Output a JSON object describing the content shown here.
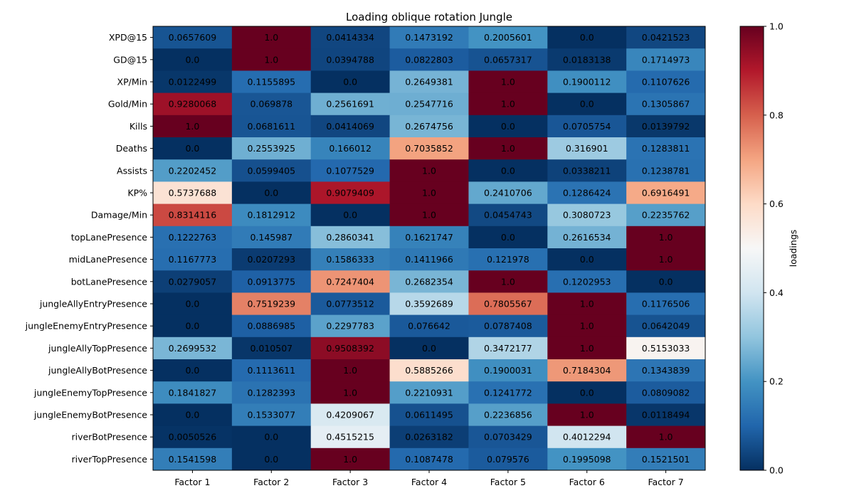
{
  "chart_data": {
    "type": "heatmap",
    "title": "Loading oblique rotation Jungle",
    "colorbar_label": "loadings",
    "colormap": "RdBu_r",
    "value_range": [
      0.0,
      1.0
    ],
    "colorbar_ticks": [
      "0.0",
      "0.2",
      "0.4",
      "0.6",
      "0.8",
      "1.0"
    ],
    "columns": [
      "Factor 1",
      "Factor 2",
      "Factor 3",
      "Factor 4",
      "Factor 5",
      "Factor 6",
      "Factor 7"
    ],
    "rows": [
      "XPD@15",
      "GD@15",
      "XP/Min",
      "Gold/Min",
      "Kills",
      "Deaths",
      "Assists",
      "KP%",
      "Damage/Min",
      "topLanePresence",
      "midLanePresence",
      "botLanePresence",
      "jungleAllyEntryPresence",
      "jungleEnemyEntryPresence",
      "jungleAllyTopPresence",
      "jungleAllyBotPresence",
      "jungleEnemyTopPresence",
      "jungleEnemyBotPresence",
      "riverBotPresence",
      "riverTopPresence"
    ],
    "values": [
      [
        0.0657609,
        1.0,
        0.0414334,
        0.1473192,
        0.2005601,
        0.0,
        0.0421523
      ],
      [
        0.0,
        1.0,
        0.0394788,
        0.0822803,
        0.0657317,
        0.0183138,
        0.1714973
      ],
      [
        0.0122499,
        0.1155895,
        0.0,
        0.2649381,
        1.0,
        0.1900112,
        0.1107626
      ],
      [
        0.9280068,
        0.069878,
        0.2561691,
        0.2547716,
        1.0,
        0.0,
        0.1305867
      ],
      [
        1.0,
        0.0681611,
        0.0414069,
        0.2674756,
        0.0,
        0.0705754,
        0.0139792
      ],
      [
        0.0,
        0.2553925,
        0.166012,
        0.7035852,
        1.0,
        0.316901,
        0.1283811
      ],
      [
        0.2202452,
        0.0599405,
        0.1077529,
        1.0,
        0.0,
        0.0338211,
        0.1238781
      ],
      [
        0.5737688,
        0.0,
        0.9079409,
        1.0,
        0.2410706,
        0.1286424,
        0.6916491
      ],
      [
        0.8314116,
        0.1812912,
        0.0,
        1.0,
        0.0454743,
        0.3080723,
        0.2235762
      ],
      [
        0.1222763,
        0.145987,
        0.2860341,
        0.1621747,
        0.0,
        0.2616534,
        1.0
      ],
      [
        0.1167773,
        0.0207293,
        0.1586333,
        0.1411966,
        0.121978,
        0.0,
        1.0
      ],
      [
        0.0279057,
        0.0913775,
        0.7247404,
        0.2682354,
        1.0,
        0.1202953,
        0.0
      ],
      [
        0.0,
        0.7519239,
        0.0773512,
        0.3592689,
        0.7805567,
        1.0,
        0.1176506
      ],
      [
        0.0,
        0.0886985,
        0.2297783,
        0.076642,
        0.0787408,
        1.0,
        0.0642049
      ],
      [
        0.2699532,
        0.010507,
        0.9508392,
        0.0,
        0.3472177,
        1.0,
        0.5153033
      ],
      [
        0.0,
        0.1113611,
        1.0,
        0.5885266,
        0.1900031,
        0.7184304,
        0.1343839
      ],
      [
        0.1841827,
        0.1282393,
        1.0,
        0.2210931,
        0.1241772,
        0.0,
        0.0809082
      ],
      [
        0.0,
        0.1533077,
        0.4209067,
        0.0611495,
        0.2236856,
        1.0,
        0.0118494
      ],
      [
        0.0050526,
        0.0,
        0.4515215,
        0.0263182,
        0.0703429,
        0.4012294,
        1.0
      ],
      [
        0.1541598,
        0.0,
        1.0,
        0.1087478,
        0.079576,
        0.1995098,
        0.1521501
      ]
    ],
    "cell_labels": [
      [
        "0.0657609",
        "1.0",
        "0.0414334",
        "0.1473192",
        "0.2005601",
        "0.0",
        "0.0421523"
      ],
      [
        "0.0",
        "1.0",
        "0.0394788",
        "0.0822803",
        "0.0657317",
        "0.0183138",
        "0.1714973"
      ],
      [
        "0.0122499",
        "0.1155895",
        "0.0",
        "0.2649381",
        "1.0",
        "0.1900112",
        "0.1107626"
      ],
      [
        "0.9280068",
        "0.069878",
        "0.2561691",
        "0.2547716",
        "1.0",
        "0.0",
        "0.1305867"
      ],
      [
        "1.0",
        "0.0681611",
        "0.0414069",
        "0.2674756",
        "0.0",
        "0.0705754",
        "0.0139792"
      ],
      [
        "0.0",
        "0.2553925",
        "0.166012",
        "0.7035852",
        "1.0",
        "0.316901",
        "0.1283811"
      ],
      [
        "0.2202452",
        "0.0599405",
        "0.1077529",
        "1.0",
        "0.0",
        "0.0338211",
        "0.1238781"
      ],
      [
        "0.5737688",
        "0.0",
        "0.9079409",
        "1.0",
        "0.2410706",
        "0.1286424",
        "0.6916491"
      ],
      [
        "0.8314116",
        "0.1812912",
        "0.0",
        "1.0",
        "0.0454743",
        "0.3080723",
        "0.2235762"
      ],
      [
        "0.1222763",
        "0.145987",
        "0.2860341",
        "0.1621747",
        "0.0",
        "0.2616534",
        "1.0"
      ],
      [
        "0.1167773",
        "0.0207293",
        "0.1586333",
        "0.1411966",
        "0.121978",
        "0.0",
        "1.0"
      ],
      [
        "0.0279057",
        "0.0913775",
        "0.7247404",
        "0.2682354",
        "1.0",
        "0.1202953",
        "0.0"
      ],
      [
        "0.0",
        "0.7519239",
        "0.0773512",
        "0.3592689",
        "0.7805567",
        "1.0",
        "0.1176506"
      ],
      [
        "0.0",
        "0.0886985",
        "0.2297783",
        "0.076642",
        "0.0787408",
        "1.0",
        "0.0642049"
      ],
      [
        "0.2699532",
        "0.010507",
        "0.9508392",
        "0.0",
        "0.3472177",
        "1.0",
        "0.5153033"
      ],
      [
        "0.0",
        "0.1113611",
        "1.0",
        "0.5885266",
        "0.1900031",
        "0.7184304",
        "0.1343839"
      ],
      [
        "0.1841827",
        "0.1282393",
        "1.0",
        "0.2210931",
        "0.1241772",
        "0.0",
        "0.0809082"
      ],
      [
        "0.0",
        "0.1533077",
        "0.4209067",
        "0.0611495",
        "0.2236856",
        "1.0",
        "0.0118494"
      ],
      [
        "0.0050526",
        "0.0",
        "0.4515215",
        "0.0263182",
        "0.0703429",
        "0.4012294",
        "1.0"
      ],
      [
        "0.1541598",
        "0.0",
        "1.0",
        "0.1087478",
        "0.079576",
        "0.1995098",
        "0.1521501"
      ]
    ]
  }
}
